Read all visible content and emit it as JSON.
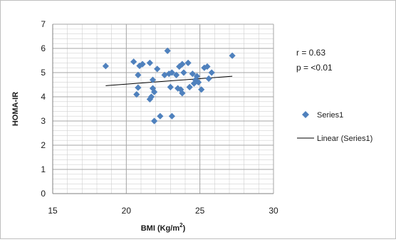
{
  "chart_data": {
    "type": "scatter",
    "xlabel": "BMI (Kg/m",
    "xlabel_sup": "2",
    "xlabel_close": ")",
    "ylabel": "HOMA-IR",
    "xlim": [
      15,
      30
    ],
    "ylim": [
      0,
      7
    ],
    "x_ticks": [
      15,
      20,
      25,
      30
    ],
    "y_ticks": [
      0,
      1,
      2,
      3,
      4,
      5,
      6,
      7
    ],
    "grid": true,
    "legend_position": "right",
    "annotations": [
      "r = 0.63",
      "p = <0.01"
    ],
    "colors": {
      "points": "#4f81bd",
      "trendline": "#000000",
      "grid": "#a6a6a6"
    },
    "series": [
      {
        "name": "Series1",
        "marker": "diamond",
        "points": [
          [
            18.6,
            5.27
          ],
          [
            20.5,
            5.45
          ],
          [
            20.7,
            4.1
          ],
          [
            20.8,
            4.9
          ],
          [
            20.9,
            5.28
          ],
          [
            20.8,
            4.38
          ],
          [
            21.1,
            5.35
          ],
          [
            21.6,
            5.4
          ],
          [
            21.6,
            3.9
          ],
          [
            21.7,
            4.0
          ],
          [
            21.8,
            4.7
          ],
          [
            21.8,
            4.35
          ],
          [
            21.9,
            4.2
          ],
          [
            21.9,
            3.0
          ],
          [
            22.1,
            5.15
          ],
          [
            22.3,
            3.2
          ],
          [
            22.6,
            4.9
          ],
          [
            22.8,
            5.9
          ],
          [
            22.9,
            4.95
          ],
          [
            23.0,
            4.4
          ],
          [
            23.1,
            5.0
          ],
          [
            23.1,
            3.2
          ],
          [
            23.4,
            4.9
          ],
          [
            23.5,
            4.35
          ],
          [
            23.6,
            5.25
          ],
          [
            23.7,
            4.3
          ],
          [
            23.8,
            5.35
          ],
          [
            23.8,
            4.15
          ],
          [
            23.9,
            5.0
          ],
          [
            24.2,
            5.4
          ],
          [
            24.3,
            4.4
          ],
          [
            24.5,
            4.95
          ],
          [
            24.6,
            4.55
          ],
          [
            24.7,
            4.7
          ],
          [
            24.8,
            4.85
          ],
          [
            24.9,
            4.6
          ],
          [
            25.1,
            4.3
          ],
          [
            25.3,
            5.2
          ],
          [
            25.5,
            5.25
          ],
          [
            25.6,
            4.75
          ],
          [
            25.8,
            5.0
          ],
          [
            27.2,
            5.7
          ]
        ]
      },
      {
        "name": "Linear (Series1)",
        "type": "linear-trendline",
        "line": [
          [
            18.6,
            4.46
          ],
          [
            27.2,
            4.85
          ]
        ]
      }
    ]
  }
}
